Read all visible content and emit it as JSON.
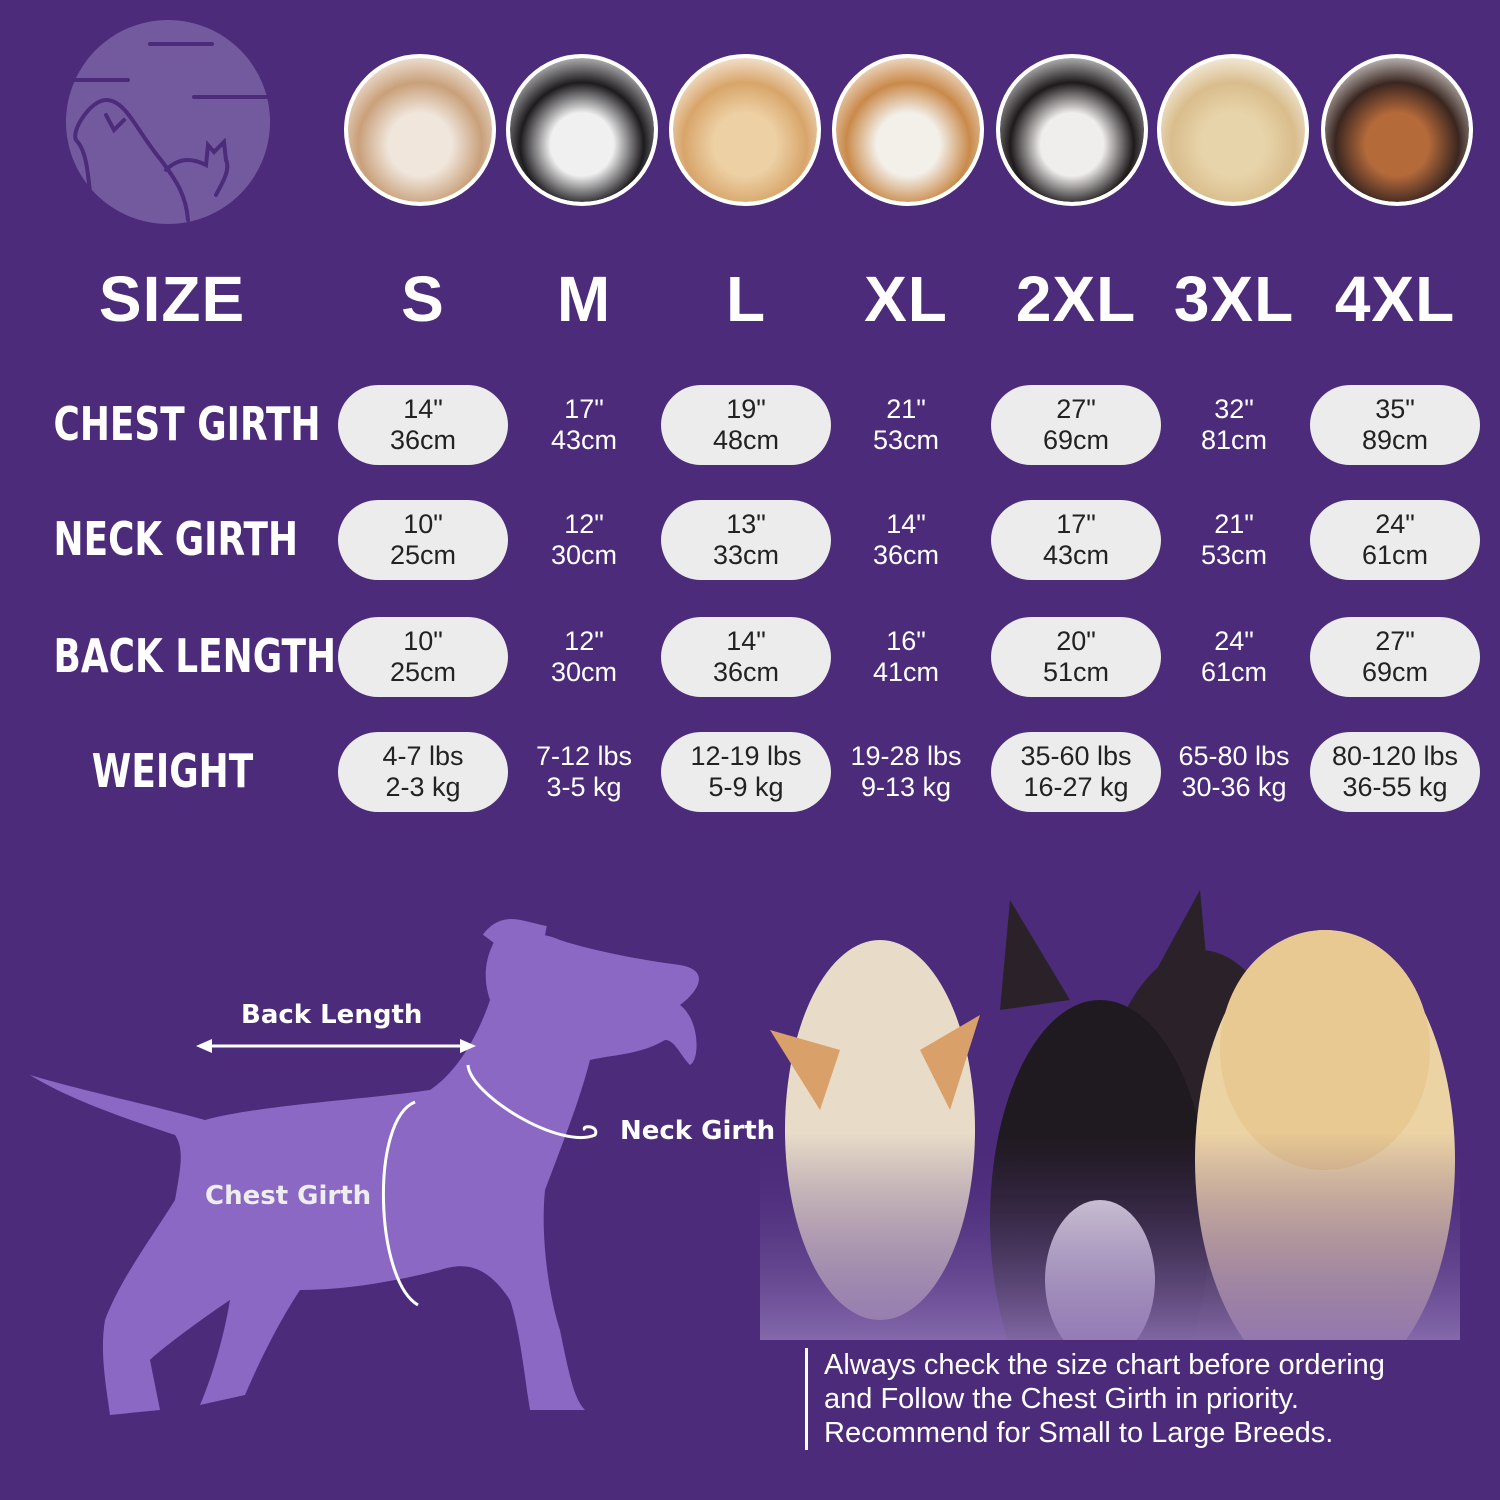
{
  "colors": {
    "background": "#4b2b7a",
    "pill": "#ececec",
    "silhouette": "#8a68c4",
    "logo": "#735a9e"
  },
  "logo": {
    "icon": "dog-and-cat-logo-icon"
  },
  "breed_photos": [
    "shih-tzu",
    "boston-terrier",
    "cocker-spaniel",
    "beagle",
    "border-collie",
    "labrador",
    "doberman"
  ],
  "header": {
    "label": "SIZE",
    "sizes": [
      "S",
      "M",
      "L",
      "XL",
      "2XL",
      "3XL",
      "4XL"
    ]
  },
  "rows": [
    {
      "label": "CHEST GIRTH",
      "cells": [
        [
          "14\"",
          "36cm"
        ],
        [
          "17\"",
          "43cm"
        ],
        [
          "19\"",
          "48cm"
        ],
        [
          "21\"",
          "53cm"
        ],
        [
          "27\"",
          "69cm"
        ],
        [
          "32\"",
          "81cm"
        ],
        [
          "35\"",
          "89cm"
        ]
      ]
    },
    {
      "label": "NECK GIRTH",
      "cells": [
        [
          "10\"",
          "25cm"
        ],
        [
          "12\"",
          "30cm"
        ],
        [
          "13\"",
          "33cm"
        ],
        [
          "14\"",
          "36cm"
        ],
        [
          "17\"",
          "43cm"
        ],
        [
          "21\"",
          "53cm"
        ],
        [
          "24\"",
          "61cm"
        ]
      ]
    },
    {
      "label": "BACK LENGTH",
      "cells": [
        [
          "10\"",
          "25cm"
        ],
        [
          "12\"",
          "30cm"
        ],
        [
          "14\"",
          "36cm"
        ],
        [
          "16\"",
          "41cm"
        ],
        [
          "20\"",
          "51cm"
        ],
        [
          "24\"",
          "61cm"
        ],
        [
          "27\"",
          "69cm"
        ]
      ]
    },
    {
      "label": "WEIGHT",
      "cells": [
        [
          "4-7 lbs",
          "2-3 kg"
        ],
        [
          "7-12 lbs",
          "3-5 kg"
        ],
        [
          "12-19 lbs",
          "5-9 kg"
        ],
        [
          "19-28 lbs",
          "9-13 kg"
        ],
        [
          "35-60 lbs",
          "16-27 kg"
        ],
        [
          "65-80 lbs",
          "30-36 kg"
        ],
        [
          "80-120 lbs",
          "36-55 kg"
        ]
      ]
    }
  ],
  "diagram": {
    "back_length": "Back Length",
    "neck_girth": "Neck Girth",
    "chest_girth": "Chest Girth"
  },
  "note": {
    "lines": [
      "Always check the size chart before ordering",
      "and Follow the Chest Girth in priority.",
      "Recommend for Small to Large Breeds."
    ]
  }
}
